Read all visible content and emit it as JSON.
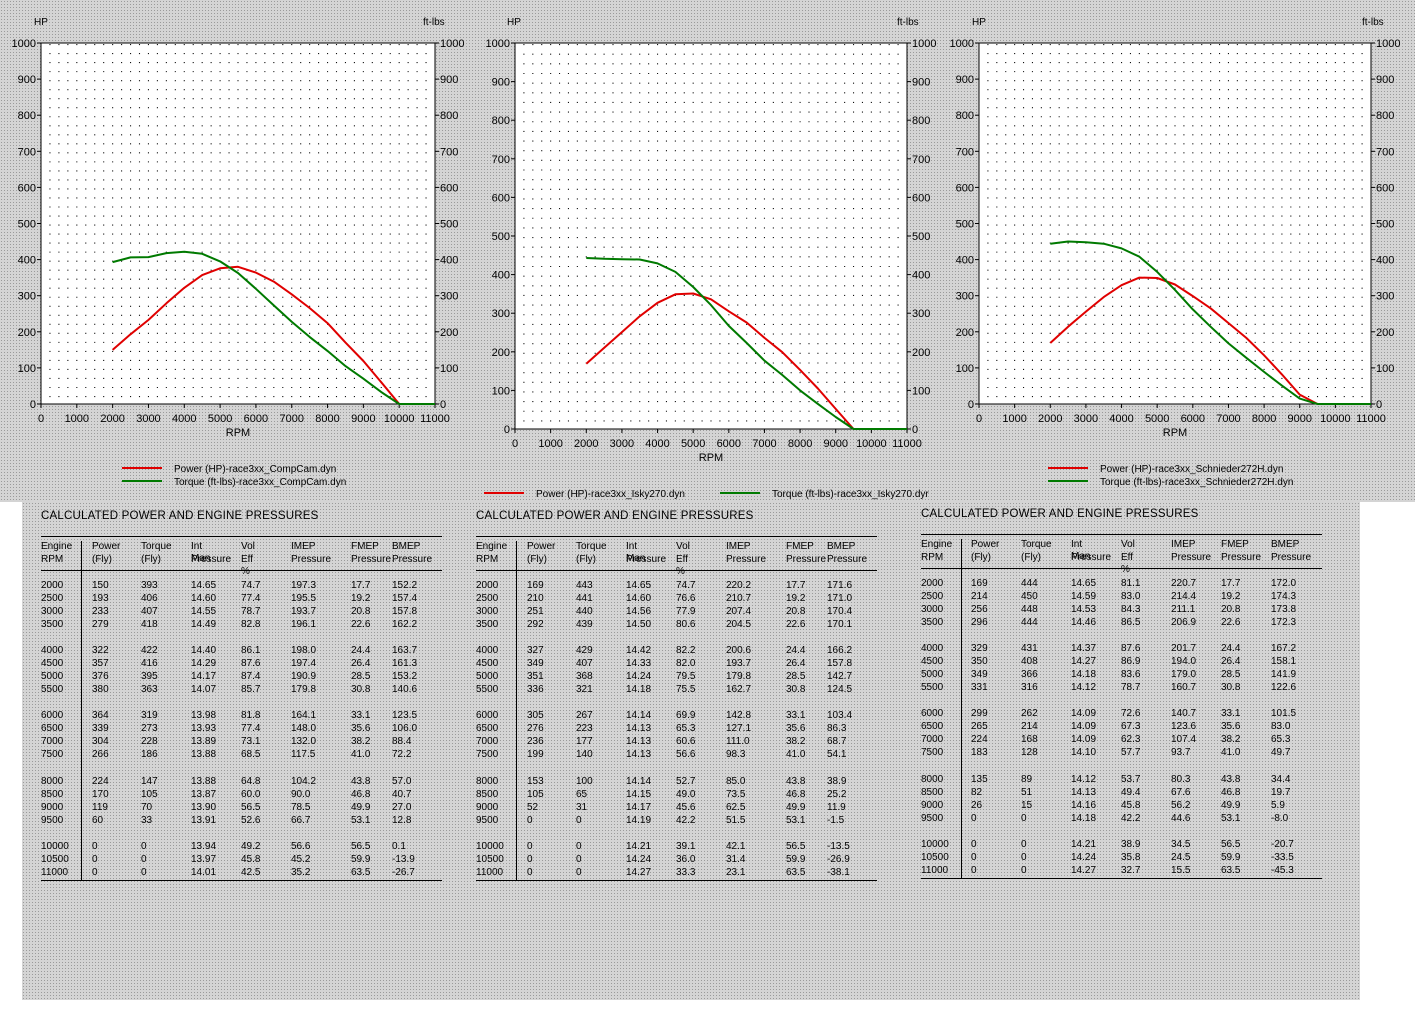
{
  "panels": [
    {
      "left_axis_unit": "HP",
      "right_axis_unit": "ft-lbs",
      "xlabel": "RPM",
      "legend_layout": "stacked",
      "legend": [
        "Power (HP)-race3xx_CompCam.dyn",
        "Torque (ft-lbs)-race3xx_CompCam.dyn"
      ],
      "table_title": "CALCULATED POWER AND ENGINE PRESSURES",
      "rows": [
        [
          "2000",
          "150",
          "393",
          "14.65",
          "74.7",
          "197.3",
          "17.7",
          "152.2"
        ],
        [
          "2500",
          "193",
          "406",
          "14.60",
          "77.4",
          "195.5",
          "19.2",
          "157.4"
        ],
        [
          "3000",
          "233",
          "407",
          "14.55",
          "78.7",
          "193.7",
          "20.8",
          "157.8"
        ],
        [
          "3500",
          "279",
          "418",
          "14.49",
          "82.8",
          "196.1",
          "22.6",
          "162.2"
        ],
        [
          "4000",
          "322",
          "422",
          "14.40",
          "86.1",
          "198.0",
          "24.4",
          "163.7"
        ],
        [
          "4500",
          "357",
          "416",
          "14.29",
          "87.6",
          "197.4",
          "26.4",
          "161.3"
        ],
        [
          "5000",
          "376",
          "395",
          "14.17",
          "87.4",
          "190.9",
          "28.5",
          "153.2"
        ],
        [
          "5500",
          "380",
          "363",
          "14.07",
          "85.7",
          "179.8",
          "30.8",
          "140.6"
        ],
        [
          "6000",
          "364",
          "319",
          "13.98",
          "81.8",
          "164.1",
          "33.1",
          "123.5"
        ],
        [
          "6500",
          "339",
          "273",
          "13.93",
          "77.4",
          "148.0",
          "35.6",
          "106.0"
        ],
        [
          "7000",
          "304",
          "228",
          "13.89",
          "73.1",
          "132.0",
          "38.2",
          "88.4"
        ],
        [
          "7500",
          "266",
          "186",
          "13.88",
          "68.5",
          "117.5",
          "41.0",
          "72.2"
        ],
        [
          "8000",
          "224",
          "147",
          "13.88",
          "64.8",
          "104.2",
          "43.8",
          "57.0"
        ],
        [
          "8500",
          "170",
          "105",
          "13.87",
          "60.0",
          "90.0",
          "46.8",
          "40.7"
        ],
        [
          "9000",
          "119",
          "70",
          "13.90",
          "56.5",
          "78.5",
          "49.9",
          "27.0"
        ],
        [
          "9500",
          "60",
          "33",
          "13.91",
          "52.6",
          "66.7",
          "53.1",
          "12.8"
        ],
        [
          "10000",
          "0",
          "0",
          "13.94",
          "49.2",
          "56.6",
          "56.5",
          "0.1"
        ],
        [
          "10500",
          "0",
          "0",
          "13.97",
          "45.8",
          "45.2",
          "59.9",
          "-13.9"
        ],
        [
          "11000",
          "0",
          "0",
          "14.01",
          "42.5",
          "35.2",
          "63.5",
          "-26.7"
        ]
      ]
    },
    {
      "left_axis_unit": "HP",
      "right_axis_unit": "ft-lbs",
      "xlabel": "RPM",
      "legend_layout": "inline",
      "legend": [
        "Power (HP)-race3xx_Isky270.dyn",
        "Torque (ft-lbs)-race3xx_Isky270.dyr"
      ],
      "table_title": "CALCULATED POWER AND ENGINE PRESSURES",
      "rows": [
        [
          "2000",
          "169",
          "443",
          "14.65",
          "74.7",
          "220.2",
          "17.7",
          "171.6"
        ],
        [
          "2500",
          "210",
          "441",
          "14.60",
          "76.6",
          "210.7",
          "19.2",
          "171.0"
        ],
        [
          "3000",
          "251",
          "440",
          "14.56",
          "77.9",
          "207.4",
          "20.8",
          "170.4"
        ],
        [
          "3500",
          "292",
          "439",
          "14.50",
          "80.6",
          "204.5",
          "22.6",
          "170.1"
        ],
        [
          "4000",
          "327",
          "429",
          "14.42",
          "82.2",
          "200.6",
          "24.4",
          "166.2"
        ],
        [
          "4500",
          "349",
          "407",
          "14.33",
          "82.0",
          "193.7",
          "26.4",
          "157.8"
        ],
        [
          "5000",
          "351",
          "368",
          "14.24",
          "79.5",
          "179.8",
          "28.5",
          "142.7"
        ],
        [
          "5500",
          "336",
          "321",
          "14.18",
          "75.5",
          "162.7",
          "30.8",
          "124.5"
        ],
        [
          "6000",
          "305",
          "267",
          "14.14",
          "69.9",
          "142.8",
          "33.1",
          "103.4"
        ],
        [
          "6500",
          "276",
          "223",
          "14.13",
          "65.3",
          "127.1",
          "35.6",
          "86.3"
        ],
        [
          "7000",
          "236",
          "177",
          "14.13",
          "60.6",
          "111.0",
          "38.2",
          "68.7"
        ],
        [
          "7500",
          "199",
          "140",
          "14.13",
          "56.6",
          "98.3",
          "41.0",
          "54.1"
        ],
        [
          "8000",
          "153",
          "100",
          "14.14",
          "52.7",
          "85.0",
          "43.8",
          "38.9"
        ],
        [
          "8500",
          "105",
          "65",
          "14.15",
          "49.0",
          "73.5",
          "46.8",
          "25.2"
        ],
        [
          "9000",
          "52",
          "31",
          "14.17",
          "45.6",
          "62.5",
          "49.9",
          "11.9"
        ],
        [
          "9500",
          "0",
          "0",
          "14.19",
          "42.2",
          "51.5",
          "53.1",
          "-1.5"
        ],
        [
          "10000",
          "0",
          "0",
          "14.21",
          "39.1",
          "42.1",
          "56.5",
          "-13.5"
        ],
        [
          "10500",
          "0",
          "0",
          "14.24",
          "36.0",
          "31.4",
          "59.9",
          "-26.9"
        ],
        [
          "11000",
          "0",
          "0",
          "14.27",
          "33.3",
          "23.1",
          "63.5",
          "-38.1"
        ]
      ]
    },
    {
      "left_axis_unit": "HP",
      "right_axis_unit": "ft-lbs",
      "xlabel": "RPM",
      "legend_layout": "stacked",
      "legend": [
        "Power (HP)-race3xx_Schnieder272H.dyn",
        "Torque (ft-lbs)-race3xx_Schnieder272H.dyn"
      ],
      "table_title": "CALCULATED POWER AND ENGINE PRESSURES",
      "rows": [
        [
          "2000",
          "169",
          "444",
          "14.65",
          "81.1",
          "220.7",
          "17.7",
          "172.0"
        ],
        [
          "2500",
          "214",
          "450",
          "14.59",
          "83.0",
          "214.4",
          "19.2",
          "174.3"
        ],
        [
          "3000",
          "256",
          "448",
          "14.53",
          "84.3",
          "211.1",
          "20.8",
          "173.8"
        ],
        [
          "3500",
          "296",
          "444",
          "14.46",
          "86.5",
          "206.9",
          "22.6",
          "172.3"
        ],
        [
          "4000",
          "329",
          "431",
          "14.37",
          "87.6",
          "201.7",
          "24.4",
          "167.2"
        ],
        [
          "4500",
          "350",
          "408",
          "14.27",
          "86.9",
          "194.0",
          "26.4",
          "158.1"
        ],
        [
          "5000",
          "349",
          "366",
          "14.18",
          "83.6",
          "179.0",
          "28.5",
          "141.9"
        ],
        [
          "5500",
          "331",
          "316",
          "14.12",
          "78.7",
          "160.7",
          "30.8",
          "122.6"
        ],
        [
          "6000",
          "299",
          "262",
          "14.09",
          "72.6",
          "140.7",
          "33.1",
          "101.5"
        ],
        [
          "6500",
          "265",
          "214",
          "14.09",
          "67.3",
          "123.6",
          "35.6",
          "83.0"
        ],
        [
          "7000",
          "224",
          "168",
          "14.09",
          "62.3",
          "107.4",
          "38.2",
          "65.3"
        ],
        [
          "7500",
          "183",
          "128",
          "14.10",
          "57.7",
          "93.7",
          "41.0",
          "49.7"
        ],
        [
          "8000",
          "135",
          "89",
          "14.12",
          "53.7",
          "80.3",
          "43.8",
          "34.4"
        ],
        [
          "8500",
          "82",
          "51",
          "14.13",
          "49.4",
          "67.6",
          "46.8",
          "19.7"
        ],
        [
          "9000",
          "26",
          "15",
          "14.16",
          "45.8",
          "56.2",
          "49.9",
          "5.9"
        ],
        [
          "9500",
          "0",
          "0",
          "14.18",
          "42.2",
          "44.6",
          "53.1",
          "-8.0"
        ],
        [
          "10000",
          "0",
          "0",
          "14.21",
          "38.9",
          "34.5",
          "56.5",
          "-20.7"
        ],
        [
          "10500",
          "0",
          "0",
          "14.24",
          "35.8",
          "24.5",
          "59.9",
          "-33.5"
        ],
        [
          "11000",
          "0",
          "0",
          "14.27",
          "32.7",
          "15.5",
          "63.5",
          "-45.3"
        ]
      ]
    }
  ],
  "table_headers": [
    [
      "Engine",
      "RPM"
    ],
    [
      "Power",
      "(Fly)"
    ],
    [
      "Torque",
      "(Fly)"
    ],
    [
      "Int Man",
      "Pressure"
    ],
    [
      "Vol",
      "Eff %"
    ],
    [
      "IMEP",
      "Pressure"
    ],
    [
      "FMEP",
      "Pressure"
    ],
    [
      "BMEP",
      "Pressure"
    ]
  ],
  "colors": {
    "power": "#e00000",
    "torque": "#007a00"
  },
  "chart_data": [
    {
      "type": "line",
      "x": [
        2000,
        2500,
        3000,
        3500,
        4000,
        4500,
        5000,
        5500,
        6000,
        6500,
        7000,
        7500,
        8000,
        8500,
        9000,
        9500,
        10000,
        10500,
        11000
      ],
      "series": [
        {
          "name": "Power (HP)-race3xx_CompCam.dyn",
          "axis": "left",
          "values": [
            150,
            193,
            233,
            279,
            322,
            357,
            376,
            380,
            364,
            339,
            304,
            266,
            224,
            170,
            119,
            60,
            0,
            0,
            0
          ]
        },
        {
          "name": "Torque (ft-lbs)-race3xx_CompCam.dyn",
          "axis": "right",
          "values": [
            393,
            406,
            407,
            418,
            422,
            416,
            395,
            363,
            319,
            273,
            228,
            186,
            147,
            105,
            70,
            33,
            0,
            0,
            0
          ]
        }
      ],
      "xlabel": "RPM",
      "ylabel": "HP",
      "y2label": "ft-lbs",
      "xlim": [
        0,
        11000
      ],
      "ylim": [
        0,
        1000
      ],
      "y2lim": [
        0,
        1000
      ],
      "x_ticks": [
        0,
        1000,
        2000,
        3000,
        4000,
        5000,
        6000,
        7000,
        8000,
        9000,
        10000,
        11000
      ],
      "y_ticks": [
        0,
        100,
        200,
        300,
        400,
        500,
        600,
        700,
        800,
        900,
        1000
      ],
      "grid": true,
      "legend_position": "bottom"
    },
    {
      "type": "line",
      "x": [
        2000,
        2500,
        3000,
        3500,
        4000,
        4500,
        5000,
        5500,
        6000,
        6500,
        7000,
        7500,
        8000,
        8500,
        9000,
        9500,
        10000,
        10500,
        11000
      ],
      "series": [
        {
          "name": "Power (HP)-race3xx_Isky270.dyn",
          "axis": "left",
          "values": [
            169,
            210,
            251,
            292,
            327,
            349,
            351,
            336,
            305,
            276,
            236,
            199,
            153,
            105,
            52,
            0,
            0,
            0,
            0
          ]
        },
        {
          "name": "Torque (ft-lbs)-race3xx_Isky270.dyr",
          "axis": "right",
          "values": [
            443,
            441,
            440,
            439,
            429,
            407,
            368,
            321,
            267,
            223,
            177,
            140,
            100,
            65,
            31,
            0,
            0,
            0,
            0
          ]
        }
      ],
      "xlabel": "RPM",
      "ylabel": "HP",
      "y2label": "ft-lbs",
      "xlim": [
        0,
        11000
      ],
      "ylim": [
        0,
        1000
      ],
      "y2lim": [
        0,
        1000
      ],
      "x_ticks": [
        0,
        1000,
        2000,
        3000,
        4000,
        5000,
        6000,
        7000,
        8000,
        9000,
        10000,
        11000
      ],
      "y_ticks": [
        0,
        100,
        200,
        300,
        400,
        500,
        600,
        700,
        800,
        900,
        1000
      ],
      "grid": true,
      "legend_position": "bottom"
    },
    {
      "type": "line",
      "x": [
        2000,
        2500,
        3000,
        3500,
        4000,
        4500,
        5000,
        5500,
        6000,
        6500,
        7000,
        7500,
        8000,
        8500,
        9000,
        9500,
        10000,
        10500,
        11000
      ],
      "series": [
        {
          "name": "Power (HP)-race3xx_Schnieder272H.dyn",
          "axis": "left",
          "values": [
            169,
            214,
            256,
            296,
            329,
            350,
            349,
            331,
            299,
            265,
            224,
            183,
            135,
            82,
            26,
            0,
            0,
            0,
            0
          ]
        },
        {
          "name": "Torque (ft-lbs)-race3xx_Schnieder272H.dyn",
          "axis": "right",
          "values": [
            444,
            450,
            448,
            444,
            431,
            408,
            366,
            316,
            262,
            214,
            168,
            128,
            89,
            51,
            15,
            0,
            0,
            0,
            0
          ]
        }
      ],
      "xlabel": "RPM",
      "ylabel": "HP",
      "y2label": "ft-lbs",
      "xlim": [
        0,
        11000
      ],
      "ylim": [
        0,
        1000
      ],
      "y2lim": [
        0,
        1000
      ],
      "x_ticks": [
        0,
        1000,
        2000,
        3000,
        4000,
        5000,
        6000,
        7000,
        8000,
        9000,
        10000,
        11000
      ],
      "y_ticks": [
        0,
        100,
        200,
        300,
        400,
        500,
        600,
        700,
        800,
        900,
        1000
      ],
      "grid": true,
      "legend_position": "bottom"
    }
  ]
}
